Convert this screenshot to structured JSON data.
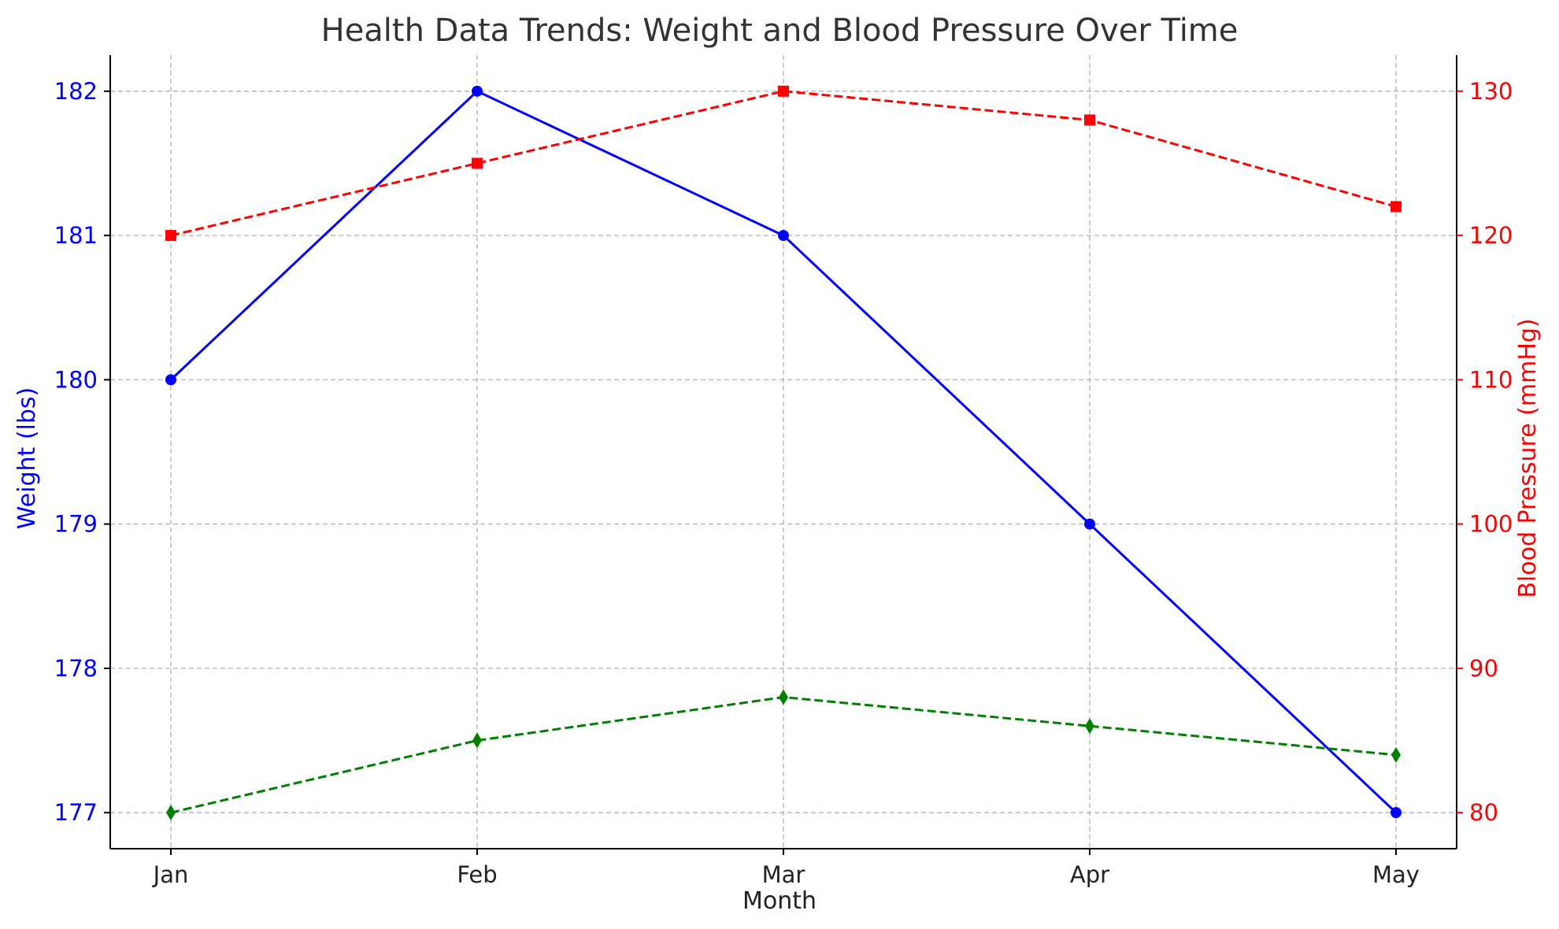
{
  "chart_data": {
    "type": "line",
    "title": "Health Data Trends: Weight and Blood Pressure Over Time",
    "xlabel": "Month",
    "categories": [
      "Jan",
      "Feb",
      "Mar",
      "Apr",
      "May"
    ],
    "grid": true,
    "y_left": {
      "label": "Weight (lbs)",
      "color": "#0000ff",
      "ticks": [
        177,
        178,
        179,
        180,
        181,
        182
      ],
      "ylim": [
        176.75,
        182.25
      ]
    },
    "y_right": {
      "label": "Blood Pressure (mmHg)",
      "color": "#ff0000",
      "ticks": [
        80,
        90,
        100,
        110,
        120,
        130
      ],
      "ylim": [
        77.5,
        132.5
      ]
    },
    "series": [
      {
        "axis": "left",
        "color": "#0000ff",
        "linestyle": "solid",
        "marker": "circle",
        "values": [
          180,
          182,
          181,
          179,
          177
        ]
      },
      {
        "axis": "right",
        "color": "#ff0000",
        "linestyle": "dashed",
        "marker": "square",
        "values": [
          120,
          125,
          130,
          128,
          122
        ]
      },
      {
        "axis": "right",
        "color": "#008000",
        "linestyle": "dashed",
        "marker": "diamond",
        "values": [
          80,
          85,
          88,
          86,
          84
        ]
      }
    ]
  }
}
